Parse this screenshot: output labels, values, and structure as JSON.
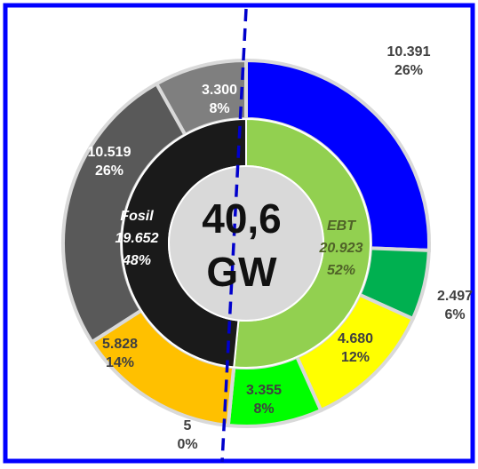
{
  "chart_data": {
    "type": "pie",
    "subtype": "nested-donut",
    "center": {
      "value": "40,6",
      "unit": "GW"
    },
    "inner_ring": [
      {
        "name": "EBT",
        "value": 20923,
        "value_label": "20.923",
        "percent_label": "52%",
        "color": "#92d050",
        "text_color": "#4f6228"
      },
      {
        "name": "Fosil",
        "value": 19652,
        "value_label": "19.652",
        "percent_label": "48%",
        "color": "#1a1a1a",
        "text_color": "#ffffff"
      }
    ],
    "outer_ring": [
      {
        "value": 10391,
        "value_label": "10.391",
        "percent_label": "26%",
        "color": "#0000ff",
        "text_color": "#404040"
      },
      {
        "value": 2497,
        "value_label": "2.497",
        "percent_label": "6%",
        "color": "#00b050",
        "text_color": "#404040"
      },
      {
        "value": 4680,
        "value_label": "4.680",
        "percent_label": "12%",
        "color": "#ffff00",
        "text_color": "#404040"
      },
      {
        "value": 3355,
        "value_label": "3.355",
        "percent_label": "8%",
        "color": "#00ff00",
        "text_color": "#404040"
      },
      {
        "value": 5,
        "value_label": "5",
        "percent_label": "0%",
        "color": "#7f7f7f",
        "text_color": "#404040"
      },
      {
        "value": 5828,
        "value_label": "5.828",
        "percent_label": "14%",
        "color": "#ffc000",
        "text_color": "#404040"
      },
      {
        "value": 10519,
        "value_label": "10.519",
        "percent_label": "26%",
        "color": "#595959",
        "text_color": "#ffffff"
      },
      {
        "value": 3300,
        "value_label": "3.300",
        "percent_label": "8%",
        "color": "#7f7f7f",
        "text_color": "#ffffff"
      }
    ],
    "colors": {
      "frame": "#0000ff",
      "divider": "#0000cc",
      "center_fill": "#d9d9d9",
      "separator": "#d9d9d9"
    }
  }
}
